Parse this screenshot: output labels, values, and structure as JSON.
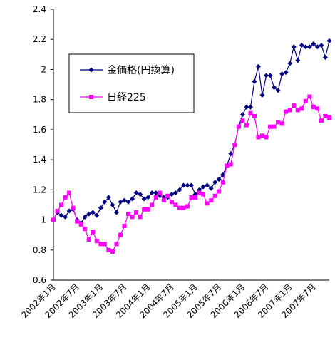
{
  "chart_data": {
    "type": "line",
    "categories": [
      "2002年1月",
      null,
      null,
      null,
      null,
      null,
      "2002年7月",
      null,
      null,
      null,
      null,
      null,
      "2003年1月",
      null,
      null,
      null,
      null,
      null,
      "2003年7月",
      null,
      null,
      null,
      null,
      null,
      "2004年1月",
      null,
      null,
      null,
      null,
      null,
      "2004年7月",
      null,
      null,
      null,
      null,
      null,
      "2005年1月",
      null,
      null,
      null,
      null,
      null,
      "2005年7月",
      null,
      null,
      null,
      null,
      null,
      "2006年1月",
      null,
      null,
      null,
      null,
      null,
      "2006年7月",
      null,
      null,
      null,
      null,
      null,
      "2007年1月",
      null,
      null,
      null,
      null,
      null,
      "2007年7月",
      null,
      null,
      null,
      null
    ],
    "series": [
      {
        "name": "金価格(円換算)",
        "color": "#000080",
        "marker": "diamond",
        "values": [
          1.0,
          1.05,
          1.03,
          1.02,
          1.06,
          1.07,
          1.0,
          0.98,
          1.02,
          1.04,
          1.05,
          1.03,
          1.08,
          1.12,
          1.15,
          1.1,
          1.05,
          1.12,
          1.13,
          1.12,
          1.14,
          1.18,
          1.17,
          1.14,
          1.15,
          1.18,
          1.18,
          1.16,
          1.15,
          1.15,
          1.17,
          1.18,
          1.2,
          1.23,
          1.23,
          1.23,
          1.17,
          1.2,
          1.22,
          1.23,
          1.21,
          1.25,
          1.27,
          1.3,
          1.36,
          1.44,
          1.5,
          1.62,
          1.7,
          1.75,
          1.75,
          1.92,
          2.02,
          1.83,
          1.96,
          1.96,
          1.88,
          1.86,
          1.97,
          1.98,
          2.04,
          2.15,
          2.06,
          2.16,
          2.15,
          2.15,
          2.17,
          2.15,
          2.16,
          2.08,
          2.19
        ]
      },
      {
        "name": "日経225",
        "color": "#ff00ff",
        "marker": "square",
        "values": [
          1.0,
          1.06,
          1.1,
          1.15,
          1.18,
          1.08,
          0.99,
          0.97,
          0.94,
          0.87,
          0.92,
          0.86,
          0.84,
          0.84,
          0.8,
          0.79,
          0.84,
          0.9,
          0.96,
          1.04,
          1.02,
          1.05,
          1.02,
          1.07,
          1.07,
          1.1,
          1.15,
          1.18,
          1.13,
          1.16,
          1.12,
          1.1,
          1.08,
          1.08,
          1.09,
          1.15,
          1.15,
          1.18,
          1.17,
          1.11,
          1.13,
          1.16,
          1.19,
          1.25,
          1.36,
          1.37,
          1.5,
          1.62,
          1.66,
          1.63,
          1.71,
          1.69,
          1.55,
          1.56,
          1.55,
          1.62,
          1.62,
          1.65,
          1.64,
          1.72,
          1.73,
          1.76,
          1.73,
          1.74,
          1.79,
          1.82,
          1.75,
          1.74,
          1.66,
          1.69,
          1.68
        ]
      }
    ],
    "ylim": [
      0.6,
      2.4
    ],
    "yticks": [
      0.6,
      0.8,
      1,
      1.2,
      1.4,
      1.6,
      1.8,
      2,
      2.2,
      2.4
    ],
    "grid": false
  }
}
